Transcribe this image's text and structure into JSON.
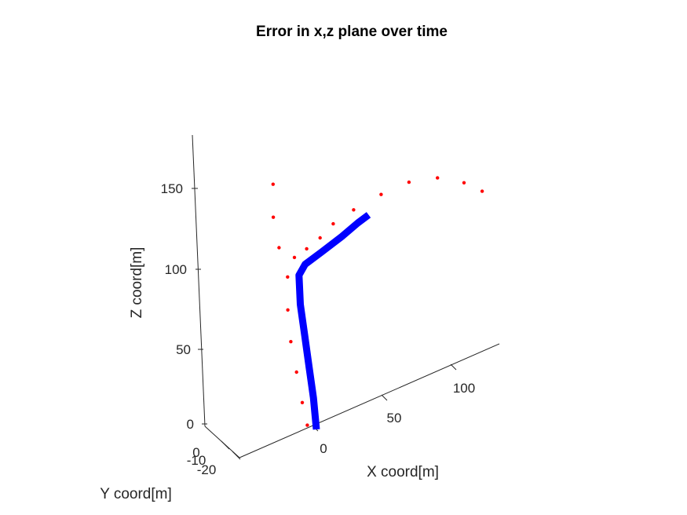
{
  "chart_data": {
    "type": "scatter",
    "view": "3d",
    "title": "Error in x,z plane over time",
    "xlabel": "X coord[m]",
    "ylabel": "Y coord[m]",
    "zlabel": "Z coord[m]",
    "x_ticks": [
      "0",
      "50",
      "100"
    ],
    "y_ticks": [
      "0",
      "-10",
      "-20"
    ],
    "z_ticks": [
      "0",
      "50",
      "100",
      "150"
    ],
    "xlim": [
      -20,
      130
    ],
    "ylim": [
      -20,
      0
    ],
    "zlim": [
      0,
      180
    ],
    "colors": {
      "measurements": "#ff0000",
      "trajectory": "#0000ff"
    },
    "series": [
      {
        "marker": "point",
        "color": "#ff0000",
        "points": [
          {
            "x": -6,
            "z": 5
          },
          {
            "x": -8,
            "z": 20
          },
          {
            "x": -10,
            "z": 40
          },
          {
            "x": -12,
            "z": 60
          },
          {
            "x": -12,
            "z": 80
          },
          {
            "x": -10,
            "z": 100
          },
          {
            "x": -14,
            "z": 120
          },
          {
            "x": -16,
            "z": 140
          },
          {
            "x": -14,
            "z": 160
          },
          {
            "x": -4,
            "z": 110
          },
          {
            "x": 5,
            "z": 112
          },
          {
            "x": 15,
            "z": 115
          },
          {
            "x": 25,
            "z": 120
          },
          {
            "x": 40,
            "z": 123
          },
          {
            "x": 60,
            "z": 125
          },
          {
            "x": 80,
            "z": 125
          },
          {
            "x": 100,
            "z": 120
          },
          {
            "x": 118,
            "z": 110
          },
          {
            "x": 130,
            "z": 100
          }
        ]
      },
      {
        "marker": "line",
        "color": "#0000ff",
        "points": [
          {
            "x": 0,
            "z": 0
          },
          {
            "x": 0,
            "z": 20
          },
          {
            "x": -1,
            "z": 40
          },
          {
            "x": -2,
            "z": 60
          },
          {
            "x": -3,
            "z": 80
          },
          {
            "x": -2,
            "z": 98
          },
          {
            "x": 3,
            "z": 103
          },
          {
            "x": 15,
            "z": 106
          },
          {
            "x": 30,
            "z": 110
          },
          {
            "x": 42,
            "z": 114
          },
          {
            "x": 50,
            "z": 116
          }
        ]
      }
    ]
  }
}
